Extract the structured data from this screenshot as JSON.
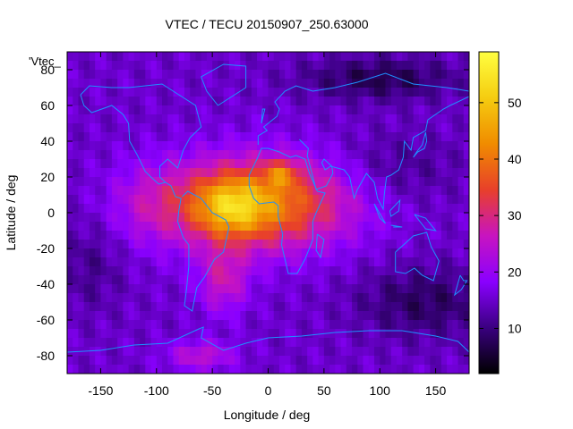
{
  "chart_data": {
    "type": "heatmap",
    "title": "VTEC / TECU 20150907_250.63000",
    "xlabel": "Longitude / deg",
    "ylabel": "Latitude / deg",
    "key_label": "'Vtec_",
    "xlim": [
      -180,
      180
    ],
    "ylim": [
      -90,
      90
    ],
    "x_ticks": [
      -150,
      -100,
      -50,
      0,
      50,
      100,
      150
    ],
    "y_ticks": [
      -80,
      -60,
      -40,
      -20,
      0,
      20,
      40,
      60,
      80
    ],
    "colorbar": {
      "range": [
        2,
        59
      ],
      "ticks": [
        10,
        20,
        30,
        40,
        50
      ],
      "palette": [
        "#000000",
        "#3a0080",
        "#8a00ff",
        "#c814c0",
        "#e8402a",
        "#f08c00",
        "#f5cc10",
        "#ffff40"
      ]
    },
    "grid": false,
    "coastline_color": "#1e90ff",
    "value_model": {
      "background": 15,
      "features": [
        {
          "lon": -10,
          "lat": 5,
          "sx": 80,
          "sy": 25,
          "amp": 28
        },
        {
          "lon": -35,
          "lat": 3,
          "sx": 30,
          "sy": 16,
          "amp": 14
        },
        {
          "lon": 12,
          "lat": 22,
          "sx": 14,
          "sy": 7,
          "amp": 12
        },
        {
          "lon": -105,
          "lat": 5,
          "sx": 35,
          "sy": 22,
          "amp": 6
        },
        {
          "lon": -40,
          "lat": -38,
          "sx": 22,
          "sy": 18,
          "amp": 11
        },
        {
          "lon": -60,
          "lat": -80,
          "sx": 30,
          "sy": 8,
          "amp": 10
        },
        {
          "lon": 115,
          "lat": 25,
          "sx": 55,
          "sy": 20,
          "amp": -4
        },
        {
          "lon": 100,
          "lat": 75,
          "sx": 70,
          "sy": 12,
          "amp": -8
        },
        {
          "lon": 140,
          "lat": -50,
          "sx": 60,
          "sy": 20,
          "amp": -7
        },
        {
          "lon": -160,
          "lat": -30,
          "sx": 30,
          "sy": 25,
          "amp": -4
        }
      ]
    }
  }
}
